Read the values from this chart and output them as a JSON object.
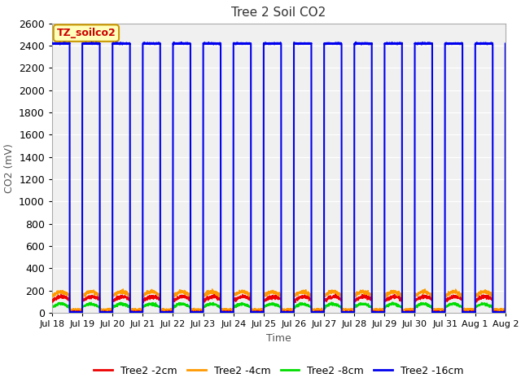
{
  "title": "Tree 2 Soil CO2",
  "ylabel": "CO2 (mV)",
  "xlabel": "Time",
  "legend_title": "TZ_soilco2",
  "ylim": [
    0,
    2600
  ],
  "yticks": [
    0,
    200,
    400,
    600,
    800,
    1000,
    1200,
    1400,
    1600,
    1800,
    2000,
    2200,
    2400,
    2600
  ],
  "bg_color": "#f0f0f0",
  "fig_color": "#ffffff",
  "line_colors": {
    "2cm": "#ee0000",
    "4cm": "#ff9900",
    "8cm": "#00dd00",
    "16cm": "#0000ee"
  },
  "legend_labels": [
    "Tree2 -2cm",
    "Tree2 -4cm",
    "Tree2 -8cm",
    "Tree2 -16cm"
  ],
  "x_tick_labels": [
    "Jul 18",
    "Jul 19",
    "Jul 20",
    "Jul 21",
    "Jul 22",
    "Jul 23",
    "Jul 24",
    "Jul 25",
    "Jul 26",
    "Jul 27",
    "Jul 28",
    "Jul 29",
    "Jul 30",
    "Jul 31",
    "Aug 1",
    "Aug 2"
  ],
  "square_wave_high": 2420,
  "square_wave_low": 5,
  "num_days": 15,
  "ppd": 288
}
